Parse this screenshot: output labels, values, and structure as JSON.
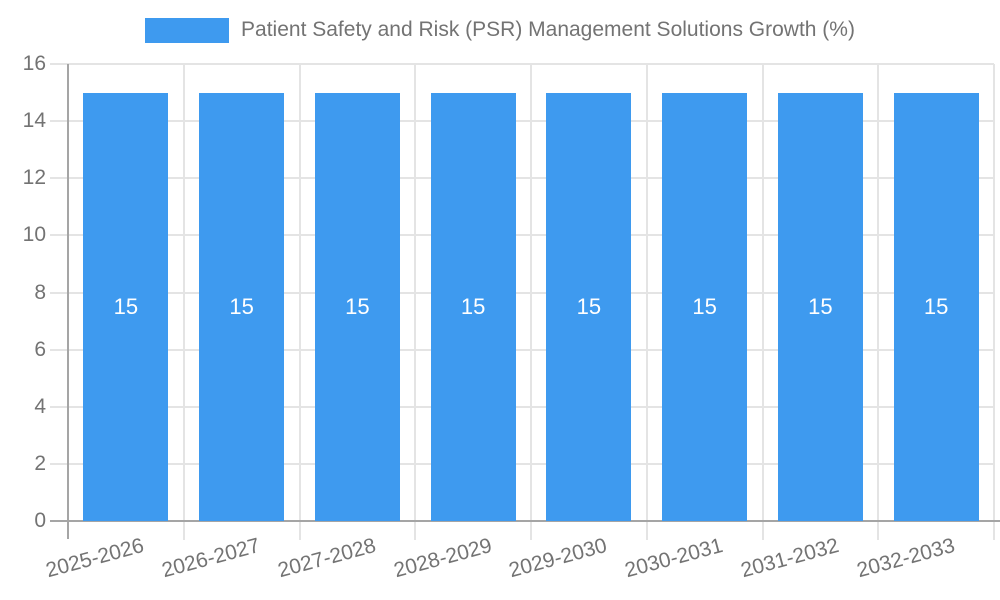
{
  "colors": {
    "bar": "#3E9AEF",
    "text": "#737373",
    "grid": "#E4E4E4",
    "axis": "#A5A5A5",
    "bar_label": "#FFFFFF",
    "background": "#FFFFFF"
  },
  "chart_data": {
    "type": "bar",
    "title": "Patient Safety and Risk (PSR) Management Solutions Growth (%)",
    "legend": {
      "position": "top",
      "label": "Patient Safety and Risk (PSR) Management Solutions Growth (%)"
    },
    "categories": [
      "2025-2026",
      "2026-2027",
      "2027-2028",
      "2028-2029",
      "2029-2030",
      "2030-2031",
      "2031-2032",
      "2032-2033"
    ],
    "values": [
      15,
      15,
      15,
      15,
      15,
      15,
      15,
      15
    ],
    "bar_value_labels": [
      "15",
      "15",
      "15",
      "15",
      "15",
      "15",
      "15",
      "15"
    ],
    "xlabel": "",
    "ylabel": "",
    "ylim": [
      0,
      16
    ],
    "yticks": [
      0,
      2,
      4,
      6,
      8,
      10,
      12,
      14,
      16
    ],
    "ytick_labels": [
      "0",
      "2",
      "4",
      "6",
      "8",
      "10",
      "12",
      "14",
      "16"
    ],
    "grid": true,
    "x_label_rotation_deg": -15
  }
}
